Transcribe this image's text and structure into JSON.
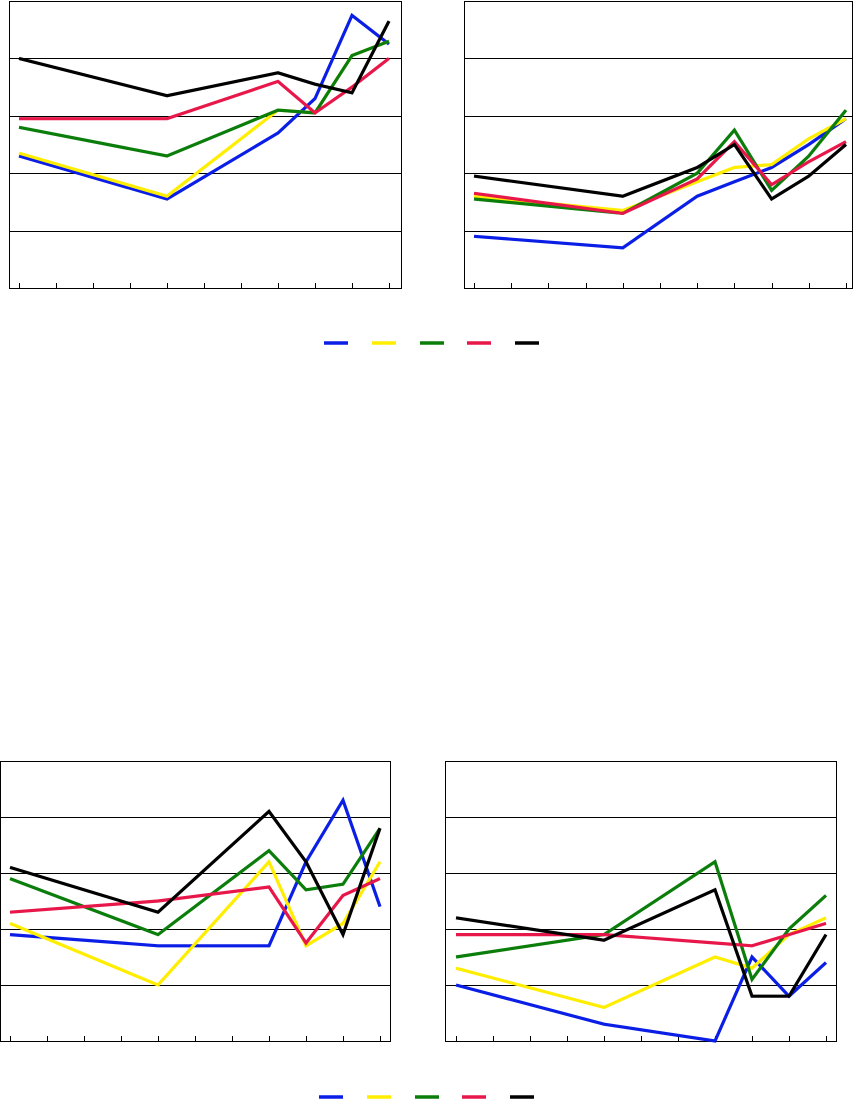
{
  "colors": {
    "blue": "#0a1ee6",
    "yellow": "#ffee00",
    "green": "#0b7d0b",
    "red": "#e8174a",
    "black": "#000000",
    "gridline": "#000000",
    "frame": "#000000"
  },
  "legend_series_colors": [
    "blue",
    "yellow",
    "green",
    "red",
    "black"
  ],
  "chart_data": [
    {
      "type": "line",
      "grid": true,
      "legend": "below",
      "x_ticks": 11,
      "ylim": [
        0,
        5
      ],
      "x": [
        0,
        4,
        7,
        8,
        9,
        10
      ],
      "series": [
        {
          "color": "blue",
          "values": [
            2.3,
            1.55,
            2.7,
            3.3,
            4.75,
            4.25
          ]
        },
        {
          "color": "yellow",
          "values": [
            2.35,
            1.6,
            3.1,
            3.05,
            4.05,
            4.3
          ]
        },
        {
          "color": "green",
          "values": [
            2.8,
            2.3,
            3.1,
            3.05,
            4.05,
            4.3
          ]
        },
        {
          "color": "red",
          "values": [
            2.95,
            2.95,
            3.6,
            3.05,
            3.5,
            4.0
          ]
        },
        {
          "color": "black",
          "values": [
            4.0,
            3.35,
            3.75,
            3.55,
            3.4,
            4.65
          ]
        }
      ]
    },
    {
      "type": "line",
      "grid": true,
      "legend": "below",
      "x_ticks": 11,
      "ylim": [
        0,
        5
      ],
      "x": [
        0,
        4,
        6,
        7,
        8,
        9,
        10
      ],
      "series": [
        {
          "color": "blue",
          "values": [
            0.9,
            0.7,
            1.6,
            1.85,
            2.1,
            2.5,
            2.95
          ]
        },
        {
          "color": "yellow",
          "values": [
            1.6,
            1.35,
            1.85,
            2.1,
            2.15,
            2.6,
            2.95
          ]
        },
        {
          "color": "green",
          "values": [
            1.55,
            1.3,
            2.0,
            2.75,
            1.7,
            2.3,
            3.1
          ]
        },
        {
          "color": "red",
          "values": [
            1.65,
            1.3,
            1.9,
            2.55,
            1.8,
            2.2,
            2.55
          ]
        },
        {
          "color": "black",
          "values": [
            1.95,
            1.6,
            2.1,
            2.5,
            1.55,
            1.95,
            2.5
          ]
        }
      ]
    },
    {
      "type": "line",
      "grid": true,
      "legend": "below",
      "x_ticks": 11,
      "ylim": [
        0,
        5
      ],
      "x": [
        0,
        4,
        7,
        8,
        9,
        10
      ],
      "series": [
        {
          "color": "blue",
          "values": [
            1.9,
            1.7,
            1.7,
            3.2,
            4.3,
            2.4
          ]
        },
        {
          "color": "yellow",
          "values": [
            2.1,
            1.0,
            3.2,
            1.7,
            2.1,
            3.2
          ]
        },
        {
          "color": "green",
          "values": [
            2.9,
            1.9,
            3.4,
            2.7,
            2.8,
            3.8
          ]
        },
        {
          "color": "red",
          "values": [
            2.3,
            2.5,
            2.75,
            1.75,
            2.6,
            2.9
          ]
        },
        {
          "color": "black",
          "values": [
            3.1,
            2.3,
            4.1,
            3.2,
            1.9,
            3.8
          ]
        }
      ]
    },
    {
      "type": "line",
      "grid": true,
      "legend": "below",
      "x_ticks": 11,
      "ylim": [
        0,
        5
      ],
      "x": [
        0,
        4,
        7,
        8,
        9,
        10
      ],
      "series": [
        {
          "color": "blue",
          "values": [
            1.0,
            0.3,
            0.0,
            1.5,
            0.8,
            1.4
          ]
        },
        {
          "color": "yellow",
          "values": [
            1.3,
            0.6,
            1.5,
            1.3,
            1.9,
            2.2
          ]
        },
        {
          "color": "green",
          "values": [
            1.5,
            1.9,
            3.2,
            1.1,
            2.0,
            2.6
          ]
        },
        {
          "color": "red",
          "values": [
            1.9,
            1.9,
            1.75,
            1.7,
            1.9,
            2.1
          ]
        },
        {
          "color": "black",
          "values": [
            2.2,
            1.8,
            2.7,
            0.8,
            0.8,
            1.9
          ]
        }
      ]
    }
  ]
}
